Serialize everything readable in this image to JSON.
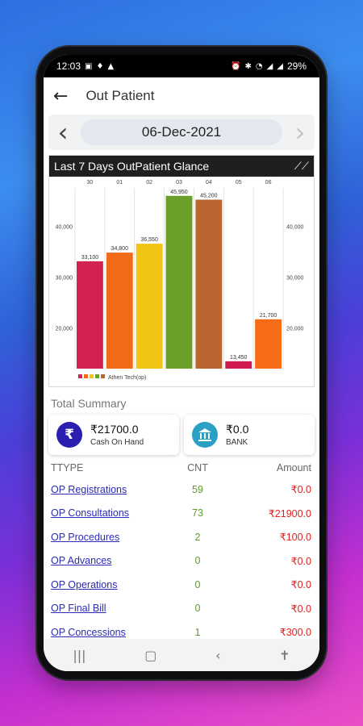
{
  "status_bar": {
    "time": "12:03",
    "battery": "29%"
  },
  "app_bar": {
    "title": "Out Patient"
  },
  "date_nav": {
    "date": "06-Dec-2021"
  },
  "chart_title": "Last 7 Days OutPatient Glance",
  "legend_label": "Athen Tech(op)",
  "chart_data": {
    "type": "bar",
    "title": "Last 7 Days OutPatient Glance",
    "categories": [
      "30",
      "01",
      "02",
      "03",
      "04",
      "05",
      "06"
    ],
    "values": [
      33100,
      34800,
      36550,
      45950,
      45200,
      13450,
      21700
    ],
    "value_labels": [
      "33,100",
      "34,800",
      "36,550",
      "45,950",
      "45,200",
      "13,450",
      "21,700"
    ],
    "colors": [
      "#d22250",
      "#f26a17",
      "#f2c414",
      "#6aa02a",
      "#b8652f",
      "#d21a50",
      "#f56b17"
    ],
    "yticks": [
      20000,
      30000,
      40000
    ],
    "ytick_labels": [
      "20,000",
      "30,000",
      "40,000"
    ],
    "ylim": [
      12000,
      47500
    ],
    "legend_colors": [
      "#d22250",
      "#f26a17",
      "#f2c414",
      "#6aa02a",
      "#b8652f"
    ],
    "series": [
      {
        "name": "Athen Tech(op)",
        "values": [
          33100,
          34800,
          36550,
          45950,
          45200,
          13450,
          21700
        ]
      }
    ]
  },
  "summary": {
    "title": "Total Summary",
    "cash": {
      "value": "₹21700.0",
      "label": "Cash On Hand"
    },
    "bank": {
      "value": "₹0.0",
      "label": "BANK"
    }
  },
  "table": {
    "headers": [
      "TTYPE",
      "CNT",
      "Amount"
    ],
    "rows": [
      {
        "type": "OP Registrations",
        "cnt": "59",
        "amount": "₹0.0"
      },
      {
        "type": "OP Consultations",
        "cnt": "73",
        "amount": "₹21900.0"
      },
      {
        "type": "OP Procedures",
        "cnt": "2",
        "amount": "₹100.0"
      },
      {
        "type": "OP Advances",
        "cnt": "0",
        "amount": "₹0.0"
      },
      {
        "type": "OP Operations",
        "cnt": "0",
        "amount": "₹0.0"
      },
      {
        "type": "OP Final Bill",
        "cnt": "0",
        "amount": "₹0.0"
      },
      {
        "type": "OP Concessions",
        "cnt": "1",
        "amount": "₹300.0"
      }
    ]
  },
  "icons": {
    "back": "arrow-left-icon",
    "prev": "chevron-left-icon",
    "next": "chevron-right-icon",
    "trend": "trend-icon",
    "rupee": "rupee-icon",
    "bank": "bank-icon"
  }
}
